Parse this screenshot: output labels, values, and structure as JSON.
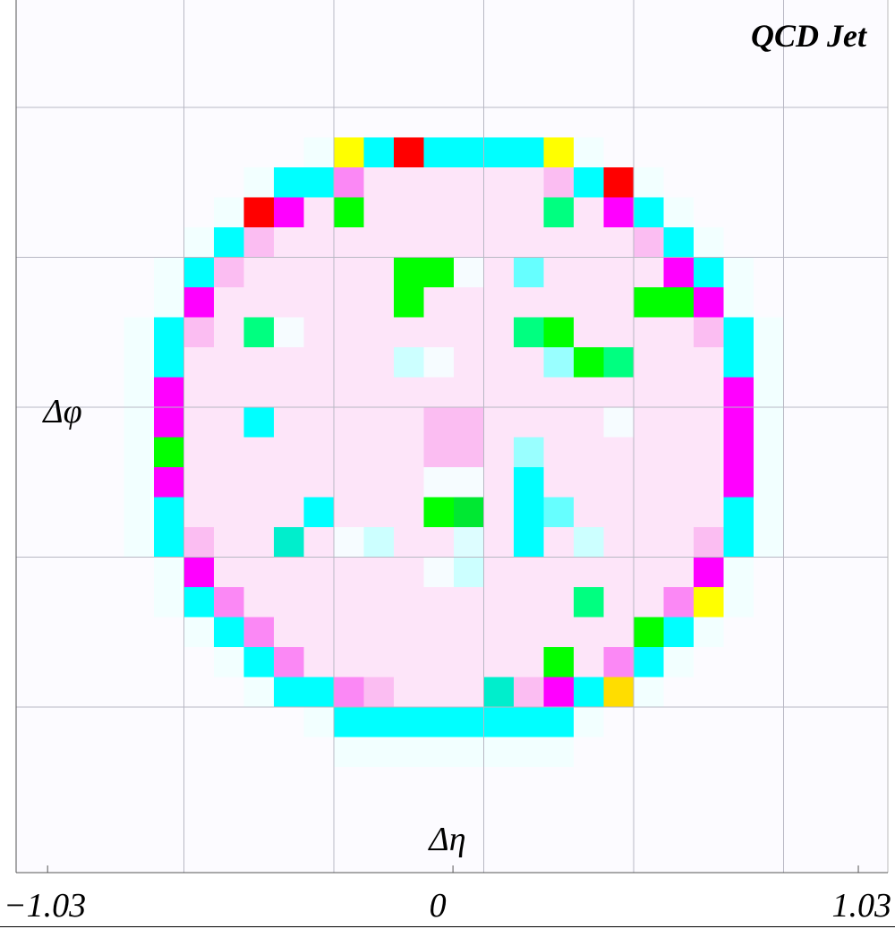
{
  "chart_data": {
    "type": "heatmap",
    "title": "QCD Jet",
    "xlabel": "Δη",
    "ylabel": "Δφ",
    "xlim": [
      -1.11,
      1.105
    ],
    "xticks": [
      {
        "value": -1.03,
        "label": "−1.03"
      },
      0,
      1.03
    ],
    "cells": [
      [
        "#fcfbff",
        "#fcfbff",
        "#fcfbff",
        "#fcfbff",
        "#fcfbff",
        "#fcfbff",
        "#fcfbff",
        "#fcfbff",
        "#fcfbff",
        "#fcfbff",
        "#fcfbff",
        "#fcfbff",
        "#fcfbff",
        "#fcfbff",
        "#fcfbff",
        "#fcfbff",
        "#fcfbff",
        "#fcfbff",
        "#fcfbff",
        "#fcfbff",
        "#fcfbff",
        "#fcfbff",
        "#fcfbff",
        "#fcfbff",
        "#fcfbff",
        "#fcfbff",
        "#fcfbff",
        "#fcfbff"
      ],
      [
        "#fcfbff",
        "#fcfbff",
        "#fcfbff",
        "#fcfbff",
        "#fcfbff",
        "#fcfbff",
        "#fcfbff",
        "#fcfbff",
        "#fcfbff",
        "#fcfbff",
        "#fcfbff",
        "#fcfbff",
        "#fcfbff",
        "#fcfbff",
        "#fcfbff",
        "#fcfbff",
        "#fcfbff",
        "#fcfbff",
        "#fcfbff",
        "#fcfbff",
        "#fcfbff",
        "#fcfbff",
        "#fcfbff",
        "#fcfbff",
        "#fcfbff",
        "#fcfbff",
        "#fcfbff",
        "#fcfbff"
      ],
      [
        "#fcfbff",
        "#fcfbff",
        "#fcfbff",
        "#fcfbff",
        "#fcfbff",
        "#fcfbff",
        "#fcfbff",
        "#fcfbff",
        "#fcfbff",
        "#fcfbff",
        "#fcfbff",
        "#fcfbff",
        "#fcfbff",
        "#fcfbff",
        "#fcfbff",
        "#fcfbff",
        "#fcfbff",
        "#fcfbff",
        "#fcfbff",
        "#fcfbff",
        "#fcfbff",
        "#fcfbff",
        "#fcfbff",
        "#fcfbff",
        "#fcfbff",
        "#fcfbff",
        "#fcfbff",
        "#fcfbff"
      ],
      [
        "#fcfbff",
        "#fcfbff",
        "#fcfbff",
        "#fcfbff",
        "#fcfbff",
        "#fcfbff",
        "#fcfbff",
        "#fcfbff",
        "#fcfbff",
        "#fcfbff",
        "#fcfbff",
        "#fcfbff",
        "#fcfbff",
        "#fcfbff",
        "#fcfbff",
        "#fcfbff",
        "#fcfbff",
        "#fcfbff",
        "#fcfbff",
        "#fcfbff",
        "#fcfbff",
        "#fcfbff",
        "#fcfbff",
        "#fcfbff",
        "#fcfbff",
        "#fcfbff",
        "#fcfbff",
        "#fcfbff"
      ],
      [
        "#fcfbff",
        "#fcfbff",
        "#fcfbff",
        "#fcfbff",
        "#fcfbff",
        "#fcfbff",
        "#fcfbff",
        "#fcfbff",
        "#fcfbff",
        "#f2ffff",
        "#ffff00",
        "#00ffff",
        "#ff0000",
        "#00ffff",
        "#00ffff",
        "#00ffff",
        "#00ffff",
        "#ffff00",
        "#f2ffff",
        "#fcfbff",
        "#fcfbff",
        "#fcfbff",
        "#fcfbff",
        "#fcfbff",
        "#fcfbff",
        "#fcfbff",
        "#fcfbff",
        "#fcfbff"
      ],
      [
        "#fcfbff",
        "#fcfbff",
        "#fcfbff",
        "#fcfbff",
        "#fcfbff",
        "#fcfbff",
        "#fcfbff",
        "#f2ffff",
        "#00ffff",
        "#00ffff",
        "#fb88f5",
        "#fde5f9",
        "#fde5f9",
        "#fde5f9",
        "#fde5f9",
        "#fde5f9",
        "#fde5f9",
        "#fbbdf2",
        "#00ffff",
        "#ff0000",
        "#f2ffff",
        "#fcfbff",
        "#fcfbff",
        "#fcfbff",
        "#fcfbff",
        "#fcfbff",
        "#fcfbff",
        "#fcfbff"
      ],
      [
        "#fcfbff",
        "#fcfbff",
        "#fcfbff",
        "#fcfbff",
        "#fcfbff",
        "#fcfbff",
        "#f2ffff",
        "#ff0000",
        "#ff00ff",
        "#fde5f9",
        "#00ff00",
        "#fde5f9",
        "#fde5f9",
        "#fde5f9",
        "#fde5f9",
        "#fde5f9",
        "#fde5f9",
        "#00ff80",
        "#fde5f9",
        "#ff00ff",
        "#00ffff",
        "#f2ffff",
        "#fcfbff",
        "#fcfbff",
        "#fcfbff",
        "#fcfbff",
        "#fcfbff",
        "#fcfbff"
      ],
      [
        "#fcfbff",
        "#fcfbff",
        "#fcfbff",
        "#fcfbff",
        "#fcfbff",
        "#f2ffff",
        "#00ffff",
        "#fbbdf2",
        "#fde5f9",
        "#fde5f9",
        "#fde5f9",
        "#fde5f9",
        "#fde5f9",
        "#fde5f9",
        "#fde5f9",
        "#fde5f9",
        "#fde5f9",
        "#fde5f9",
        "#fde5f9",
        "#fde5f9",
        "#fbbdf2",
        "#00ffff",
        "#f2ffff",
        "#fcfbff",
        "#fcfbff",
        "#fcfbff",
        "#fcfbff",
        "#fcfbff"
      ],
      [
        "#fcfbff",
        "#fcfbff",
        "#fcfbff",
        "#fcfbff",
        "#f2ffff",
        "#00ffff",
        "#fbbdf2",
        "#fde5f9",
        "#fde5f9",
        "#fde5f9",
        "#fde5f9",
        "#fde5f9",
        "#00ff00",
        "#00ff00",
        "#f6fcff",
        "#fde5f9",
        "#66ffff",
        "#fde5f9",
        "#fde5f9",
        "#fde5f9",
        "#fde5f9",
        "#ff00ff",
        "#00ffff",
        "#f2ffff",
        "#fcfbff",
        "#fcfbff",
        "#fcfbff",
        "#fcfbff"
      ],
      [
        "#fcfbff",
        "#fcfbff",
        "#fcfbff",
        "#fcfbff",
        "#f2ffff",
        "#ff00ff",
        "#fde5f9",
        "#fde5f9",
        "#fde5f9",
        "#fde5f9",
        "#fde5f9",
        "#fde5f9",
        "#00ff00",
        "#fde5f9",
        "#fde5f9",
        "#fde5f9",
        "#fde5f9",
        "#fde5f9",
        "#fde5f9",
        "#fde5f9",
        "#00ff00",
        "#00ff00",
        "#ff00ff",
        "#f2ffff",
        "#fcfbff",
        "#fcfbff",
        "#fcfbff",
        "#fcfbff"
      ],
      [
        "#fcfbff",
        "#fcfbff",
        "#fcfbff",
        "#f2ffff",
        "#00ffff",
        "#fbbdf2",
        "#fde5f9",
        "#00ff80",
        "#f6fcff",
        "#fde5f9",
        "#fde5f9",
        "#fde5f9",
        "#fde5f9",
        "#fde5f9",
        "#fde5f9",
        "#fde5f9",
        "#00ff80",
        "#00ff00",
        "#fde5f9",
        "#fde5f9",
        "#fde5f9",
        "#fde5f9",
        "#fbbdf2",
        "#00ffff",
        "#f2ffff",
        "#fcfbff",
        "#fcfbff",
        "#fcfbff"
      ],
      [
        "#fcfbff",
        "#fcfbff",
        "#fcfbff",
        "#f2ffff",
        "#00ffff",
        "#fde5f9",
        "#fde5f9",
        "#fde5f9",
        "#fde5f9",
        "#fde5f9",
        "#fde5f9",
        "#fde5f9",
        "#ccffff",
        "#f6fcff",
        "#fde5f9",
        "#fde5f9",
        "#fde5f9",
        "#99ffff",
        "#00ff00",
        "#00ff80",
        "#fde5f9",
        "#fde5f9",
        "#fde5f9",
        "#00ffff",
        "#f2ffff",
        "#fcfbff",
        "#fcfbff",
        "#fcfbff"
      ],
      [
        "#fcfbff",
        "#fcfbff",
        "#fcfbff",
        "#f2ffff",
        "#ff00ff",
        "#fde5f9",
        "#fde5f9",
        "#fde5f9",
        "#fde5f9",
        "#fde5f9",
        "#fde5f9",
        "#fde5f9",
        "#fde5f9",
        "#fde5f9",
        "#fde5f9",
        "#fde5f9",
        "#fde5f9",
        "#fde5f9",
        "#fde5f9",
        "#fde5f9",
        "#fde5f9",
        "#fde5f9",
        "#fde5f9",
        "#ff00ff",
        "#f2ffff",
        "#fcfbff",
        "#fcfbff",
        "#fcfbff"
      ],
      [
        "#fcfbff",
        "#fcfbff",
        "#fcfbff",
        "#f2ffff",
        "#ff00ff",
        "#fde5f9",
        "#fde5f9",
        "#00ffff",
        "#fde5f9",
        "#fde5f9",
        "#fde5f9",
        "#fde5f9",
        "#fde5f9",
        "#fbbdf2",
        "#fbbdf2",
        "#fde5f9",
        "#fde5f9",
        "#fde5f9",
        "#fde5f9",
        "#f6fcff",
        "#fde5f9",
        "#fde5f9",
        "#fde5f9",
        "#ff00ff",
        "#f2ffff",
        "#fcfbff",
        "#fcfbff",
        "#fcfbff"
      ],
      [
        "#fcfbff",
        "#fcfbff",
        "#fcfbff",
        "#f2ffff",
        "#00ff00",
        "#fde5f9",
        "#fde5f9",
        "#fde5f9",
        "#fde5f9",
        "#fde5f9",
        "#fde5f9",
        "#fde5f9",
        "#fde5f9",
        "#fbbdf2",
        "#fbbdf2",
        "#fde5f9",
        "#99ffff",
        "#fde5f9",
        "#fde5f9",
        "#fde5f9",
        "#fde5f9",
        "#fde5f9",
        "#fde5f9",
        "#ff00ff",
        "#f2ffff",
        "#fcfbff",
        "#fcfbff",
        "#fcfbff"
      ],
      [
        "#fcfbff",
        "#fcfbff",
        "#fcfbff",
        "#f2ffff",
        "#ff00ff",
        "#fde5f9",
        "#fde5f9",
        "#fde5f9",
        "#fde5f9",
        "#fde5f9",
        "#fde5f9",
        "#fde5f9",
        "#fde5f9",
        "#f6fcff",
        "#f6fcff",
        "#fde5f9",
        "#00ffff",
        "#fde5f9",
        "#fde5f9",
        "#fde5f9",
        "#fde5f9",
        "#fde5f9",
        "#fde5f9",
        "#ff00ff",
        "#f2ffff",
        "#fcfbff",
        "#fcfbff",
        "#fcfbff"
      ],
      [
        "#fcfbff",
        "#fcfbff",
        "#fcfbff",
        "#f2ffff",
        "#00ffff",
        "#fde5f9",
        "#fde5f9",
        "#fde5f9",
        "#fde5f9",
        "#00ffff",
        "#fde5f9",
        "#fde5f9",
        "#fde5f9",
        "#00ff00",
        "#00e832",
        "#fde5f9",
        "#00ffff",
        "#66ffff",
        "#fde5f9",
        "#fde5f9",
        "#fde5f9",
        "#fde5f9",
        "#fde5f9",
        "#00ffff",
        "#f2ffff",
        "#fcfbff",
        "#fcfbff",
        "#fcfbff"
      ],
      [
        "#fcfbff",
        "#fcfbff",
        "#fcfbff",
        "#f2ffff",
        "#00ffff",
        "#fbbdf2",
        "#fde5f9",
        "#fde5f9",
        "#00eecc",
        "#fde5f9",
        "#f6fcff",
        "#ccffff",
        "#fde5f9",
        "#fde5f9",
        "#ddfdff",
        "#fde5f9",
        "#00ffff",
        "#fde5f9",
        "#ccffff",
        "#fde5f9",
        "#fde5f9",
        "#fde5f9",
        "#fbbdf2",
        "#00ffff",
        "#f2ffff",
        "#fcfbff",
        "#fcfbff",
        "#fcfbff"
      ],
      [
        "#fcfbff",
        "#fcfbff",
        "#fcfbff",
        "#fcfbff",
        "#f2ffff",
        "#ff00ff",
        "#fde5f9",
        "#fde5f9",
        "#fde5f9",
        "#fde5f9",
        "#fde5f9",
        "#fde5f9",
        "#fde5f9",
        "#f6fcff",
        "#ccffff",
        "#fde5f9",
        "#fde5f9",
        "#fde5f9",
        "#fde5f9",
        "#fde5f9",
        "#fde5f9",
        "#fde5f9",
        "#ff00ff",
        "#f2ffff",
        "#fcfbff",
        "#fcfbff",
        "#fcfbff",
        "#fcfbff"
      ],
      [
        "#fcfbff",
        "#fcfbff",
        "#fcfbff",
        "#fcfbff",
        "#f2ffff",
        "#00ffff",
        "#fb88f5",
        "#fde5f9",
        "#fde5f9",
        "#fde5f9",
        "#fde5f9",
        "#fde5f9",
        "#fde5f9",
        "#fde5f9",
        "#fde5f9",
        "#fde5f9",
        "#fde5f9",
        "#fde5f9",
        "#00ff80",
        "#fde5f9",
        "#fde5f9",
        "#fb88f5",
        "#ffff00",
        "#f2ffff",
        "#fcfbff",
        "#fcfbff",
        "#fcfbff",
        "#fcfbff"
      ],
      [
        "#fcfbff",
        "#fcfbff",
        "#fcfbff",
        "#fcfbff",
        "#fcfbff",
        "#f2ffff",
        "#00ffff",
        "#fb88f5",
        "#fde5f9",
        "#fde5f9",
        "#fde5f9",
        "#fde5f9",
        "#fde5f9",
        "#fde5f9",
        "#fde5f9",
        "#fde5f9",
        "#fde5f9",
        "#fde5f9",
        "#fde5f9",
        "#fde5f9",
        "#00ff00",
        "#00ffff",
        "#f2ffff",
        "#fcfbff",
        "#fcfbff",
        "#fcfbff",
        "#fcfbff",
        "#fcfbff"
      ],
      [
        "#fcfbff",
        "#fcfbff",
        "#fcfbff",
        "#fcfbff",
        "#fcfbff",
        "#fcfbff",
        "#f2ffff",
        "#00ffff",
        "#fb88f5",
        "#fde5f9",
        "#fde5f9",
        "#fde5f9",
        "#fde5f9",
        "#fde5f9",
        "#fde5f9",
        "#fde5f9",
        "#fde5f9",
        "#00ff00",
        "#fde5f9",
        "#fb88f5",
        "#00ffff",
        "#f2ffff",
        "#fcfbff",
        "#fcfbff",
        "#fcfbff",
        "#fcfbff",
        "#fcfbff",
        "#fcfbff"
      ],
      [
        "#fcfbff",
        "#fcfbff",
        "#fcfbff",
        "#fcfbff",
        "#fcfbff",
        "#fcfbff",
        "#fcfbff",
        "#f2ffff",
        "#00ffff",
        "#00ffff",
        "#fb88f5",
        "#fbbdf2",
        "#fde5f9",
        "#fde5f9",
        "#fde5f9",
        "#00eecc",
        "#fbbdf2",
        "#ff00ff",
        "#00ffff",
        "#ffdd00",
        "#f2ffff",
        "#fcfbff",
        "#fcfbff",
        "#fcfbff",
        "#fcfbff",
        "#fcfbff",
        "#fcfbff",
        "#fcfbff"
      ],
      [
        "#fcfbff",
        "#fcfbff",
        "#fcfbff",
        "#fcfbff",
        "#fcfbff",
        "#fcfbff",
        "#fcfbff",
        "#fcfbff",
        "#fcfbff",
        "#f2ffff",
        "#00ffff",
        "#00ffff",
        "#00ffff",
        "#00ffff",
        "#00ffff",
        "#00ffff",
        "#00ffff",
        "#00ffff",
        "#f2ffff",
        "#fcfbff",
        "#fcfbff",
        "#fcfbff",
        "#fcfbff",
        "#fcfbff",
        "#fcfbff",
        "#fcfbff",
        "#fcfbff",
        "#fcfbff"
      ],
      [
        "#fcfbff",
        "#fcfbff",
        "#fcfbff",
        "#fcfbff",
        "#fcfbff",
        "#fcfbff",
        "#fcfbff",
        "#fcfbff",
        "#fcfbff",
        "#fcfbff",
        "#f2ffff",
        "#f2ffff",
        "#f2ffff",
        "#f2ffff",
        "#f2ffff",
        "#f2ffff",
        "#f2ffff",
        "#f2ffff",
        "#fcfbff",
        "#fcfbff",
        "#fcfbff",
        "#fcfbff",
        "#fcfbff",
        "#fcfbff",
        "#fcfbff",
        "#fcfbff",
        "#fcfbff",
        "#fcfbff"
      ],
      [
        "#fcfbff",
        "#fcfbff",
        "#fcfbff",
        "#fcfbff",
        "#fcfbff",
        "#fcfbff",
        "#fcfbff",
        "#fcfbff",
        "#fcfbff",
        "#fcfbff",
        "#fcfbff",
        "#fcfbff",
        "#fcfbff",
        "#fcfbff",
        "#fcfbff",
        "#fcfbff",
        "#fcfbff",
        "#fcfbff",
        "#fcfbff",
        "#fcfbff",
        "#fcfbff",
        "#fcfbff",
        "#fcfbff",
        "#fcfbff",
        "#fcfbff",
        "#fcfbff",
        "#fcfbff",
        "#fcfbff"
      ],
      [
        "#fcfbff",
        "#fcfbff",
        "#fcfbff",
        "#fcfbff",
        "#fcfbff",
        "#fcfbff",
        "#fcfbff",
        "#fcfbff",
        "#fcfbff",
        "#fcfbff",
        "#fcfbff",
        "#fcfbff",
        "#fcfbff",
        "#fcfbff",
        "#fcfbff",
        "#fcfbff",
        "#fcfbff",
        "#fcfbff",
        "#fcfbff",
        "#fcfbff",
        "#fcfbff",
        "#fcfbff",
        "#fcfbff",
        "#fcfbff",
        "#fcfbff",
        "#fcfbff",
        "#fcfbff",
        "#fcfbff"
      ],
      [
        "#fcfbff",
        "#fcfbff",
        "#fcfbff",
        "#fcfbff",
        "#fcfbff",
        "#fcfbff",
        "#fcfbff",
        "#fcfbff",
        "#fcfbff",
        "#fcfbff",
        "#fcfbff",
        "#fcfbff",
        "#fcfbff",
        "#fcfbff",
        "#fcfbff",
        "#fcfbff",
        "#fcfbff",
        "#fcfbff",
        "#fcfbff",
        "#fcfbff",
        "#fcfbff",
        "#fcfbff",
        "#fcfbff",
        "#fcfbff",
        "#fcfbff",
        "#fcfbff",
        "#fcfbff",
        "#fcfbff"
      ]
    ]
  }
}
